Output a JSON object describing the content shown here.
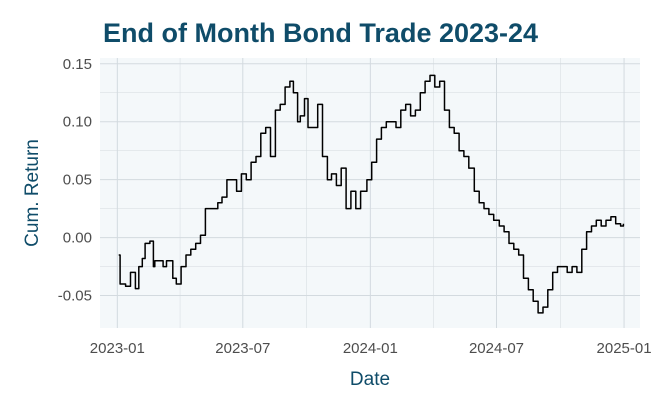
{
  "colors": {
    "title": "#0f4c69",
    "axis_label": "#0f4c69",
    "panel_bg": "#f4f8fa",
    "grid": "#d3dadf",
    "line": "#000000"
  },
  "chart_data": {
    "type": "line",
    "title": "End of Month Bond Trade 2023-24",
    "xlabel": "Date",
    "ylabel": "Cum. Return",
    "x_type": "date",
    "xlim": [
      "2022-12-07",
      "2025-01-24"
    ],
    "ylim": [
      -0.078,
      0.155
    ],
    "x_ticks": [
      "2023-01-01",
      "2023-07-01",
      "2024-01-01",
      "2024-07-01",
      "2025-01-01"
    ],
    "x_tick_labels": [
      "2023-01",
      "2023-07",
      "2024-01",
      "2024-07",
      "2025-01"
    ],
    "y_ticks": [
      -0.05,
      0.0,
      0.05,
      0.1,
      0.15
    ],
    "y_tick_labels": [
      "-0.05",
      "0.00",
      "0.05",
      "0.10",
      "0.15"
    ],
    "grid": true,
    "legend": "none",
    "series": [
      {
        "x": [
          "2023-01-03",
          "2023-01-05",
          "2023-01-09",
          "2023-01-13",
          "2023-01-20",
          "2023-01-27",
          "2023-02-01",
          "2023-02-06",
          "2023-02-10",
          "2023-02-17",
          "2023-02-22",
          "2023-02-24",
          "2023-03-01",
          "2023-03-08",
          "2023-03-13",
          "2023-03-17",
          "2023-03-22",
          "2023-03-27",
          "2023-04-03",
          "2023-04-10",
          "2023-04-17",
          "2023-04-24",
          "2023-05-01",
          "2023-05-08",
          "2023-05-15",
          "2023-05-22",
          "2023-05-26",
          "2023-06-01",
          "2023-06-08",
          "2023-06-15",
          "2023-06-22",
          "2023-06-29",
          "2023-07-06",
          "2023-07-13",
          "2023-07-20",
          "2023-07-27",
          "2023-08-03",
          "2023-08-10",
          "2023-08-17",
          "2023-08-24",
          "2023-08-31",
          "2023-09-07",
          "2023-09-12",
          "2023-09-18",
          "2023-09-22",
          "2023-09-28",
          "2023-10-03",
          "2023-10-10",
          "2023-10-17",
          "2023-10-24",
          "2023-10-31",
          "2023-11-06",
          "2023-11-13",
          "2023-11-20",
          "2023-11-27",
          "2023-12-04",
          "2023-12-11",
          "2023-12-18",
          "2023-12-27",
          "2024-01-03",
          "2024-01-10",
          "2024-01-17",
          "2024-01-24",
          "2024-01-31",
          "2024-02-07",
          "2024-02-14",
          "2024-02-21",
          "2024-02-28",
          "2024-03-06",
          "2024-03-13",
          "2024-03-20",
          "2024-03-27",
          "2024-04-03",
          "2024-04-10",
          "2024-04-17",
          "2024-04-24",
          "2024-05-01",
          "2024-05-08",
          "2024-05-15",
          "2024-05-22",
          "2024-05-30",
          "2024-06-06",
          "2024-06-13",
          "2024-06-20",
          "2024-06-27",
          "2024-07-05",
          "2024-07-12",
          "2024-07-19",
          "2024-07-26",
          "2024-08-02",
          "2024-08-09",
          "2024-08-16",
          "2024-08-23",
          "2024-08-30",
          "2024-09-06",
          "2024-09-13",
          "2024-09-20",
          "2024-09-27",
          "2024-10-04",
          "2024-10-11",
          "2024-10-18",
          "2024-10-25",
          "2024-11-01",
          "2024-11-08",
          "2024-11-15",
          "2024-11-22",
          "2024-11-29",
          "2024-12-06",
          "2024-12-13",
          "2024-12-20",
          "2024-12-27",
          "2024-12-31"
        ],
        "y": [
          -0.015,
          -0.04,
          -0.04,
          -0.042,
          -0.03,
          -0.044,
          -0.025,
          -0.018,
          -0.005,
          -0.003,
          -0.025,
          -0.02,
          -0.02,
          -0.025,
          -0.02,
          -0.02,
          -0.035,
          -0.04,
          -0.025,
          -0.015,
          -0.01,
          -0.005,
          0.002,
          0.025,
          0.025,
          0.025,
          0.03,
          0.035,
          0.05,
          0.05,
          0.04,
          0.055,
          0.05,
          0.065,
          0.07,
          0.09,
          0.095,
          0.07,
          0.11,
          0.115,
          0.13,
          0.135,
          0.125,
          0.1,
          0.105,
          0.12,
          0.095,
          0.095,
          0.115,
          0.07,
          0.05,
          0.055,
          0.045,
          0.06,
          0.025,
          0.04,
          0.025,
          0.04,
          0.05,
          0.065,
          0.085,
          0.095,
          0.1,
          0.1,
          0.095,
          0.11,
          0.115,
          0.105,
          0.11,
          0.125,
          0.135,
          0.14,
          0.13,
          0.135,
          0.11,
          0.095,
          0.09,
          0.075,
          0.07,
          0.06,
          0.04,
          0.03,
          0.025,
          0.02,
          0.015,
          0.01,
          0.005,
          -0.005,
          -0.01,
          -0.015,
          -0.035,
          -0.045,
          -0.055,
          -0.065,
          -0.06,
          -0.045,
          -0.03,
          -0.025,
          -0.025,
          -0.03,
          -0.025,
          -0.03,
          -0.01,
          0.005,
          0.01,
          0.015,
          0.01,
          0.015,
          0.018,
          0.012,
          0.01,
          0.012
        ]
      }
    ]
  }
}
